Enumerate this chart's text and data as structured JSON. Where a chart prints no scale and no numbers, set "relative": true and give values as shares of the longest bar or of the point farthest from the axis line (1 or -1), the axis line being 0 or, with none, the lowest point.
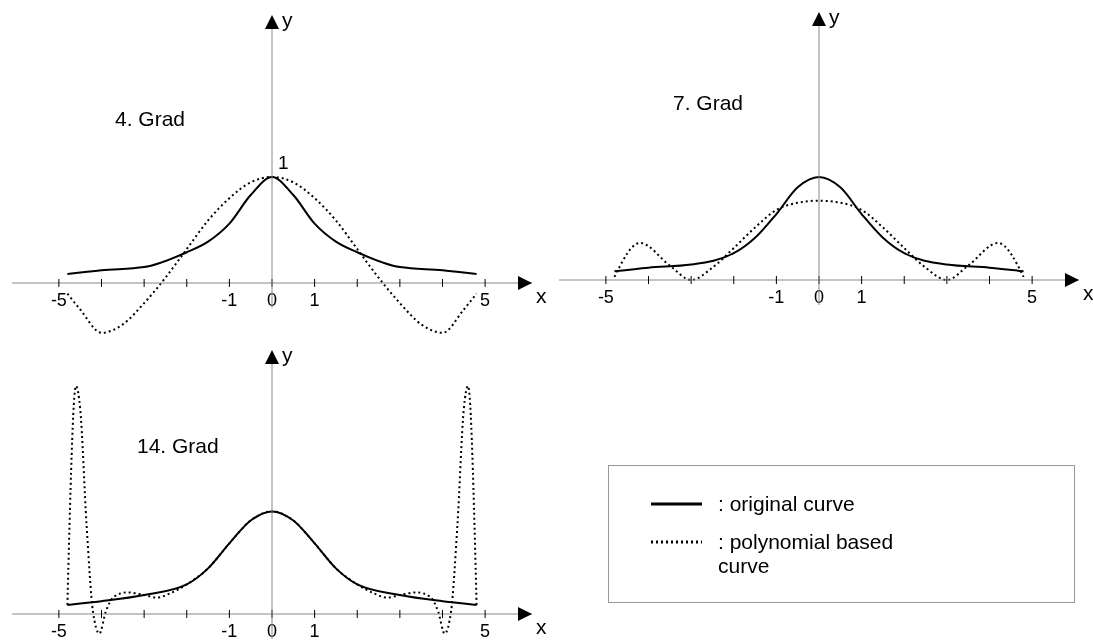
{
  "chart_data": [
    {
      "type": "line",
      "title": "4. Grad",
      "xlabel": "x",
      "ylabel": "y",
      "relative": true,
      "xlim": [
        -6.1,
        6.1
      ],
      "xticks": [
        -5,
        {
          "value": -4,
          "label": null
        },
        {
          "value": -3,
          "label": null
        },
        {
          "value": -2,
          "label": null
        },
        -1,
        0,
        1,
        {
          "value": 2,
          "label": null
        },
        {
          "value": 3,
          "label": null
        },
        {
          "value": 4,
          "label": null
        },
        5
      ],
      "marker": "none",
      "annotations": [
        {
          "text": "1",
          "x": 0,
          "y": 1
        }
      ],
      "series": [
        {
          "color": "#000000",
          "line_style": "solid",
          "x": [
            -4.8,
            -4,
            -3,
            -2,
            -1.5,
            -1,
            -0.5,
            0,
            0.5,
            1,
            1.5,
            2,
            3,
            4,
            4.8
          ],
          "values": [
            0.085,
            0.12,
            0.15,
            0.29,
            0.39,
            0.56,
            0.83,
            1,
            0.83,
            0.56,
            0.39,
            0.29,
            0.15,
            0.12,
            0.085
          ]
        },
        {
          "color": "#000000",
          "line_style": "dotted",
          "x": [
            -4.8,
            -4.5,
            -4,
            -3.5,
            -3,
            -2.5,
            -2,
            -1.5,
            -1,
            -0.5,
            0,
            0.5,
            1,
            1.5,
            2,
            2.5,
            3,
            3.5,
            4,
            4.5,
            4.8
          ],
          "values": [
            -0.1,
            -0.25,
            -0.47,
            -0.39,
            -0.19,
            0.05,
            0.32,
            0.59,
            0.8,
            0.95,
            1,
            0.95,
            0.8,
            0.59,
            0.32,
            0.05,
            -0.19,
            -0.39,
            -0.47,
            -0.25,
            -0.1
          ]
        }
      ]
    },
    {
      "type": "line",
      "title": "7. Grad",
      "xlabel": "x",
      "ylabel": "y",
      "relative": true,
      "xlim": [
        -6.1,
        6.1
      ],
      "xticks": [
        -5,
        {
          "value": -4,
          "label": null
        },
        {
          "value": -3,
          "label": null
        },
        {
          "value": -2,
          "label": null
        },
        -1,
        0,
        1,
        {
          "value": 2,
          "label": null
        },
        {
          "value": 3,
          "label": null
        },
        {
          "value": 4,
          "label": null
        },
        5
      ],
      "marker": "none",
      "series": [
        {
          "color": "#000000",
          "line_style": "solid",
          "x": [
            -4.8,
            -4,
            -3,
            -2,
            -1.5,
            -1,
            -0.5,
            0,
            0.5,
            1,
            1.5,
            2,
            3,
            4,
            4.8
          ],
          "values": [
            0.085,
            0.12,
            0.15,
            0.26,
            0.41,
            0.64,
            0.9,
            1,
            0.9,
            0.64,
            0.41,
            0.26,
            0.15,
            0.12,
            0.085
          ]
        },
        {
          "color": "#000000",
          "line_style": "dotted",
          "x": [
            -4.8,
            -4.2,
            -3.5,
            -3,
            -2.5,
            -2,
            -1.5,
            -1,
            -0.5,
            0,
            0.5,
            1,
            1.5,
            2,
            2.5,
            3,
            3.5,
            4.2,
            4.8
          ],
          "values": [
            0.03,
            0.36,
            0.14,
            0,
            0.12,
            0.31,
            0.51,
            0.68,
            0.75,
            0.77,
            0.75,
            0.68,
            0.51,
            0.31,
            0.12,
            0,
            0.14,
            0.36,
            0.03
          ]
        }
      ]
    },
    {
      "type": "line",
      "title": "14. Grad",
      "xlabel": "x",
      "ylabel": "y",
      "relative": true,
      "xlim": [
        -6.1,
        6.1
      ],
      "xticks": [
        -5,
        {
          "value": -4,
          "label": null
        },
        {
          "value": -3,
          "label": null
        },
        {
          "value": -2,
          "label": null
        },
        -1,
        0,
        1,
        {
          "value": 2,
          "label": null
        },
        {
          "value": 3,
          "label": null
        },
        {
          "value": 4,
          "label": null
        },
        5
      ],
      "marker": "none",
      "legend": "right",
      "series": [
        {
          "name": ": original curve",
          "color": "#000000",
          "line_style": "solid",
          "x": [
            -4.8,
            -4,
            -3,
            -2,
            -1.5,
            -1,
            -0.5,
            0,
            0.5,
            1,
            1.5,
            2,
            3,
            4,
            4.8
          ],
          "values": [
            0.04,
            0.056,
            0.083,
            0.13,
            0.2,
            0.31,
            0.41,
            0.45,
            0.41,
            0.31,
            0.2,
            0.13,
            0.083,
            0.056,
            0.04
          ]
        },
        {
          "name": ": polynomial based curve",
          "color": "#000000",
          "line_style": "dotted",
          "x": [
            -4.8,
            -4.6,
            -4.5,
            -4.35,
            -4.2,
            -4.05,
            -3.9,
            -3.7,
            -3.4,
            -3,
            -2.7,
            -2.4,
            -2,
            -1.5,
            -1,
            -0.5,
            0,
            0.5,
            1,
            1.5,
            2,
            2.4,
            2.7,
            3,
            3.4,
            3.7,
            3.9,
            4.05,
            4.2,
            4.35,
            4.5,
            4.6,
            4.8
          ],
          "values": [
            0.04,
            1,
            0.9,
            0.39,
            0.01,
            -0.086,
            0.01,
            0.077,
            0.095,
            0.083,
            0.072,
            0.09,
            0.13,
            0.2,
            0.31,
            0.41,
            0.45,
            0.41,
            0.31,
            0.2,
            0.13,
            0.09,
            0.072,
            0.083,
            0.095,
            0.077,
            0.01,
            -0.086,
            0.01,
            0.39,
            0.9,
            1,
            0.04
          ]
        }
      ]
    }
  ]
}
